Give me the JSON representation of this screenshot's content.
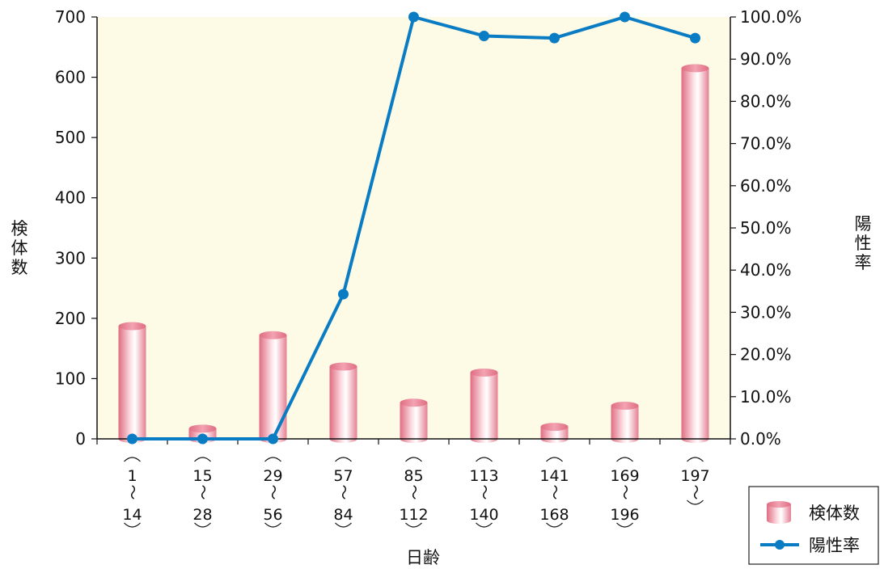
{
  "chart_data": {
    "type": "bar",
    "categories": [
      {
        "start": "1",
        "end": "14"
      },
      {
        "start": "15",
        "end": "28"
      },
      {
        "start": "29",
        "end": "56"
      },
      {
        "start": "57",
        "end": "84"
      },
      {
        "start": "85",
        "end": "112"
      },
      {
        "start": "113",
        "end": "140"
      },
      {
        "start": "141",
        "end": "168"
      },
      {
        "start": "169",
        "end": "196"
      },
      {
        "start": "197",
        "end": ""
      }
    ],
    "series": [
      {
        "name": "検体数",
        "type": "bar",
        "axis": "left",
        "values": [
          187,
          17,
          172,
          120,
          60,
          110,
          20,
          55,
          615
        ]
      },
      {
        "name": "陽性率",
        "type": "line",
        "axis": "right",
        "values": [
          0.0,
          0.0,
          0.0,
          34.3,
          100.0,
          95.5,
          95.0,
          100.0,
          95.0
        ]
      }
    ],
    "xlabel": "日齢",
    "ylabel": "検体数",
    "y2label": "陽性率",
    "ylim": [
      0,
      700
    ],
    "y2lim": [
      0,
      100
    ],
    "yticks": [
      "0",
      "100",
      "200",
      "300",
      "400",
      "500",
      "600",
      "700"
    ],
    "y2ticks": [
      "0.0%",
      "10.0%",
      "20.0%",
      "30.0%",
      "40.0%",
      "50.0%",
      "60.0%",
      "70.0%",
      "80.0%",
      "90.0%",
      "100.0%"
    ],
    "tilde": "〜",
    "legend_position": "bottom-right",
    "plot_background": "#fdfbe6",
    "bar_color": "#e8899a",
    "line_color": "#0a7cc3",
    "grid": false
  }
}
